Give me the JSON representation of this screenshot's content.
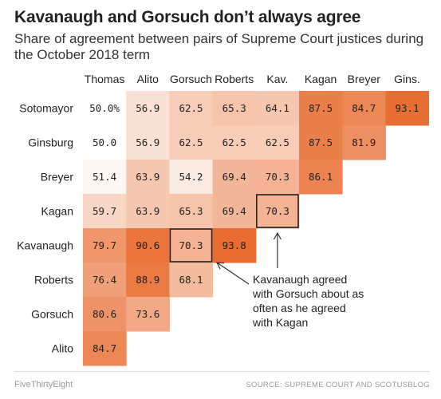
{
  "header": {
    "title": "Kavanaugh and Gorsuch don’t always agree",
    "subtitle": "Share of agreement between pairs of Supreme Court justices during the October 2018 term"
  },
  "footer": {
    "brand": "FiveThirtyEight",
    "source": "SOURCE: SUPREME COURT AND SCOTUSBLOG"
  },
  "chart_data": {
    "type": "heatmap",
    "title": "Kavanaugh and Gorsuch don’t always agree",
    "subtitle": "Share of agreement between pairs of Supreme Court justices during the October 2018 term",
    "columns": [
      "Thomas",
      "Alito",
      "Gorsuch",
      "Roberts",
      "Kav.",
      "Kagan",
      "Breyer",
      "Gins."
    ],
    "rows": [
      "Sotomayor",
      "Ginsburg",
      "Breyer",
      "Kagan",
      "Kavanaugh",
      "Roberts",
      "Gorsuch",
      "Alito"
    ],
    "cells": [
      [
        "50.0%",
        "56.9",
        "62.5",
        "65.3",
        "64.1",
        "87.5",
        "84.7",
        "93.1"
      ],
      [
        "50.0",
        "56.9",
        "62.5",
        "62.5",
        "62.5",
        "87.5",
        "81.9",
        null
      ],
      [
        "51.4",
        "63.9",
        "54.2",
        "69.4",
        "70.3",
        "86.1",
        null,
        null
      ],
      [
        "59.7",
        "63.9",
        "65.3",
        "69.4",
        "70.3",
        null,
        null,
        null
      ],
      [
        "79.7",
        "90.6",
        "70.3",
        "93.8",
        null,
        null,
        null,
        null
      ],
      [
        "76.4",
        "88.9",
        "68.1",
        null,
        null,
        null,
        null,
        null
      ],
      [
        "80.6",
        "73.6",
        null,
        null,
        null,
        null,
        null,
        null
      ],
      [
        "84.7",
        null,
        null,
        null,
        null,
        null,
        null,
        null
      ]
    ],
    "color_low": "#ffffff",
    "color_high": "#e8692c",
    "value_range": [
      50,
      95
    ],
    "highlighted_cells": [
      [
        3,
        4
      ],
      [
        4,
        2
      ]
    ],
    "annotation": {
      "lines": [
        "Kavanaugh agreed",
        "with Gorsuch about as",
        "often as he agreed",
        "with Kagan"
      ]
    }
  }
}
